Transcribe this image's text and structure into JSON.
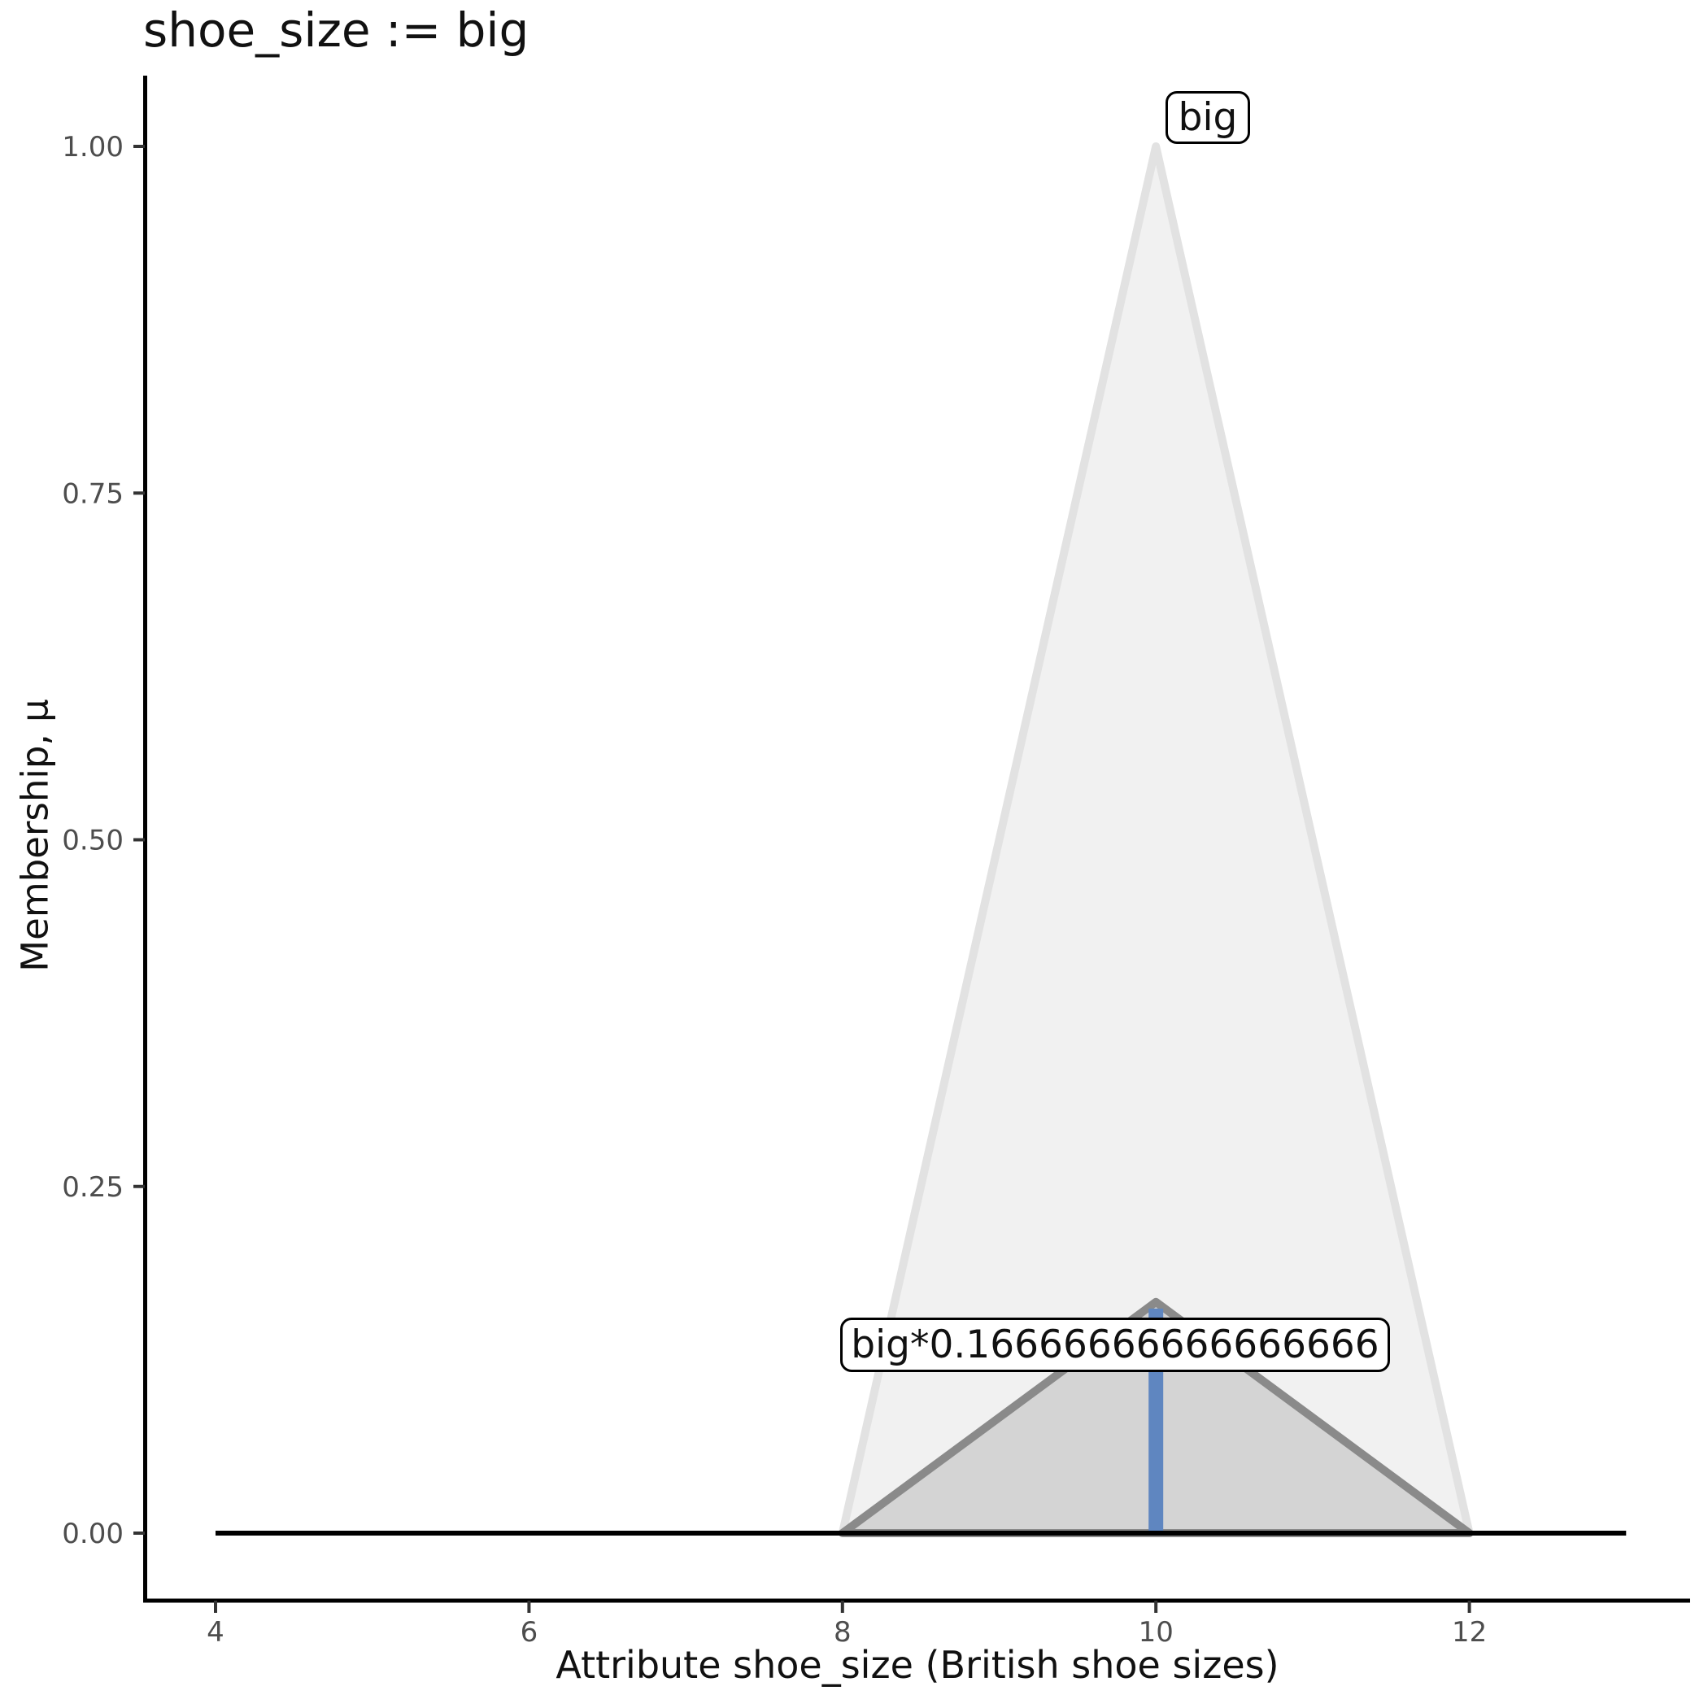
{
  "title": "shoe_size := big",
  "annotations": {
    "peak_label": "big",
    "scaled_label": "big*0.16666666666666666"
  },
  "chart_data": {
    "type": "area",
    "title": "shoe_size := big",
    "xlabel": "Attribute shoe_size (British shoe sizes)",
    "ylabel": "Membership, μ",
    "x_tick_labels": [
      "4",
      "6",
      "8",
      "10",
      "12"
    ],
    "x_tick_values": [
      4,
      6,
      8,
      10,
      12
    ],
    "y_tick_labels": [
      "0.00",
      "0.25",
      "0.50",
      "0.75",
      "1.00"
    ],
    "y_tick_values": [
      0,
      0.25,
      0.5,
      0.75,
      1
    ],
    "xlim": [
      3.55,
      13.4
    ],
    "ylim": [
      -0.05,
      1.05
    ],
    "grid": "off",
    "universe": [
      4,
      13
    ],
    "series": [
      {
        "name": "big",
        "label": "big",
        "shape": "triangle",
        "vertices": [
          [
            8,
            0
          ],
          [
            10,
            1
          ],
          [
            12,
            0
          ]
        ],
        "fill": "#f1f1f1",
        "stroke": "#e2e2e2"
      },
      {
        "name": "big-scaled",
        "label": "big*0.16666666666666666",
        "shape": "triangle",
        "scale_factor": 0.16666666666666666,
        "vertices": [
          [
            8,
            0
          ],
          [
            10,
            0.16666666666666666
          ],
          [
            12,
            0
          ]
        ],
        "fill": "#d4d4d4",
        "stroke": "#8a8a8a"
      }
    ],
    "centroid_line": {
      "x": 10,
      "mu": 0.16666666666666666,
      "color": "#5f86c0"
    },
    "baseline": {
      "x0": 4,
      "x1": 13,
      "mu": 0,
      "color": "#000000"
    },
    "colors": {
      "spine": "#000000",
      "tick_mark": "#333333",
      "tick_label": "#4d4d4d",
      "text": "#111111"
    }
  }
}
